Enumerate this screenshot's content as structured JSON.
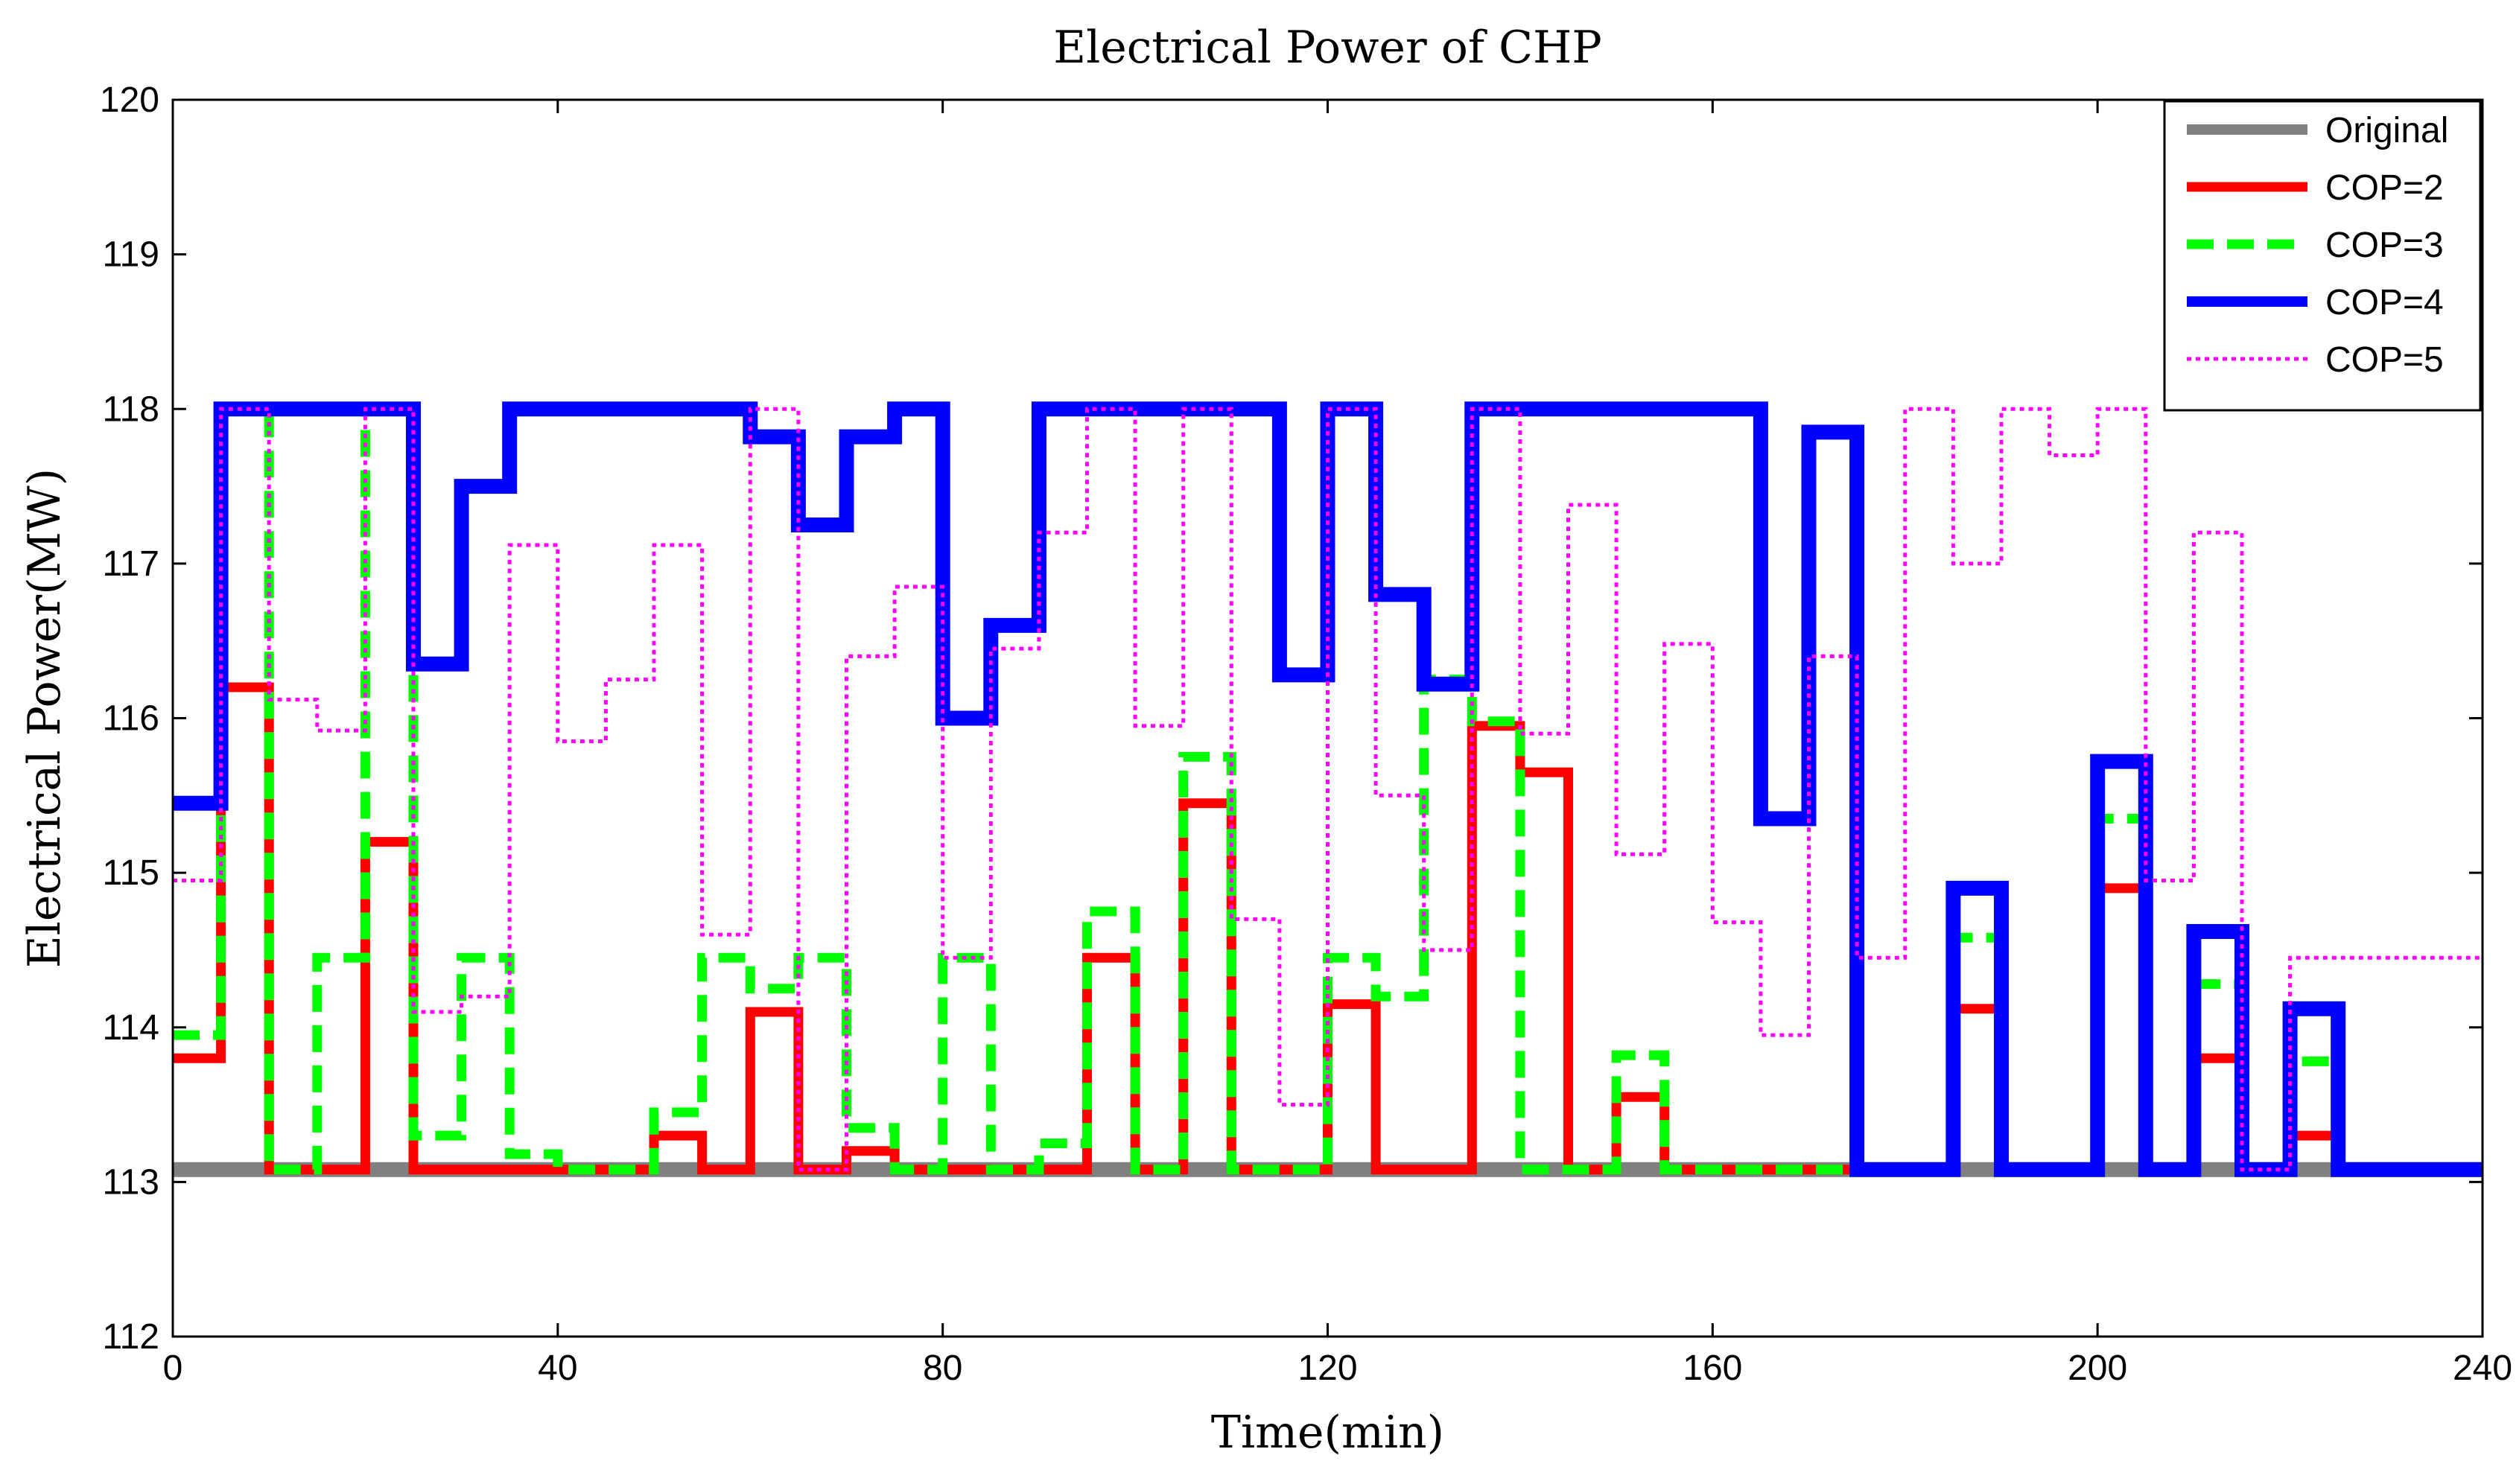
{
  "chart_data": {
    "type": "line",
    "title": "Electrical Power of CHP",
    "xlabel": "Time(min)",
    "ylabel": "Electrical Power(MW)",
    "xlim": [
      0,
      240
    ],
    "ylim": [
      112,
      120
    ],
    "xticks": [
      0,
      40,
      80,
      120,
      160,
      200,
      240
    ],
    "yticks": [
      112,
      113,
      114,
      115,
      116,
      117,
      118,
      119,
      120
    ],
    "grid": false,
    "legend_position": "top-right",
    "step_minutes": 5,
    "series": [
      {
        "name": "Original",
        "color": "#808080",
        "style": "solid-thick",
        "values": [
          113.08,
          113.08,
          113.08,
          113.08,
          113.08,
          113.08,
          113.08,
          113.08,
          113.08,
          113.08,
          113.08,
          113.08,
          113.08,
          113.08,
          113.08,
          113.08,
          113.08,
          113.08,
          113.08,
          113.08,
          113.08,
          113.08,
          113.08,
          113.08,
          113.08,
          113.08,
          113.08,
          113.08,
          113.08,
          113.08,
          113.08,
          113.08,
          113.08,
          113.08,
          113.08,
          113.08,
          113.08,
          113.08,
          113.08,
          113.08,
          113.08,
          113.08,
          113.08,
          113.08,
          113.08,
          113.08,
          113.08,
          113.08
        ]
      },
      {
        "name": "COP=2",
        "color": "#ff0000",
        "style": "solid",
        "values": [
          113.8,
          116.2,
          113.08,
          113.08,
          115.2,
          113.08,
          113.08,
          113.08,
          113.08,
          113.08,
          113.3,
          113.08,
          114.1,
          113.08,
          113.2,
          113.08,
          113.08,
          113.08,
          113.08,
          114.45,
          113.08,
          115.45,
          113.08,
          113.08,
          114.15,
          113.08,
          113.08,
          115.95,
          115.65,
          113.08,
          113.55,
          113.08,
          113.08,
          113.08,
          113.08,
          113.08,
          113.08,
          114.12,
          113.08,
          113.08,
          114.9,
          113.08,
          113.8,
          113.08,
          113.3,
          113.08,
          113.08,
          113.08
        ]
      },
      {
        "name": "COP=3",
        "color": "#00ff00",
        "style": "dashed",
        "values": [
          113.95,
          118.0,
          113.08,
          114.45,
          118.0,
          113.3,
          114.45,
          113.18,
          113.08,
          113.08,
          113.45,
          114.45,
          114.25,
          114.45,
          113.35,
          113.08,
          114.45,
          113.08,
          113.25,
          114.75,
          113.08,
          115.75,
          113.08,
          113.08,
          114.45,
          114.2,
          116.25,
          115.98,
          113.08,
          113.08,
          113.82,
          113.08,
          113.08,
          113.08,
          113.08,
          113.08,
          113.08,
          114.58,
          113.08,
          113.08,
          115.35,
          113.08,
          114.28,
          113.08,
          113.78,
          113.08,
          113.08,
          113.08
        ]
      },
      {
        "name": "COP=4",
        "color": "#0000ff",
        "style": "solid-thick",
        "values": [
          115.45,
          118.0,
          118.0,
          118.0,
          118.0,
          116.35,
          117.5,
          118.0,
          118.0,
          118.0,
          118.0,
          118.0,
          117.82,
          117.25,
          117.82,
          118.0,
          116.0,
          116.6,
          118.0,
          118.0,
          118.0,
          118.0,
          118.0,
          116.28,
          118.0,
          116.8,
          116.22,
          118.0,
          118.0,
          118.0,
          118.0,
          118.0,
          118.0,
          115.35,
          117.85,
          113.08,
          113.08,
          114.9,
          113.08,
          113.08,
          115.72,
          113.08,
          114.62,
          113.08,
          114.12,
          113.08,
          113.08,
          113.08
        ]
      },
      {
        "name": "COP=5",
        "color": "#ff00ff",
        "style": "dotted",
        "values": [
          114.95,
          118.0,
          116.12,
          115.92,
          118.0,
          114.1,
          114.2,
          117.12,
          115.85,
          116.25,
          117.12,
          114.6,
          118.0,
          113.08,
          116.4,
          116.85,
          114.45,
          116.45,
          117.2,
          118.0,
          115.95,
          118.0,
          114.7,
          113.5,
          118.0,
          115.5,
          114.5,
          118.0,
          115.9,
          117.38,
          115.12,
          116.48,
          114.68,
          113.95,
          116.4,
          114.45,
          118.0,
          117.0,
          118.0,
          117.7,
          118.0,
          114.95,
          117.2,
          113.08,
          114.45,
          114.45,
          114.45,
          114.45
        ]
      }
    ]
  }
}
